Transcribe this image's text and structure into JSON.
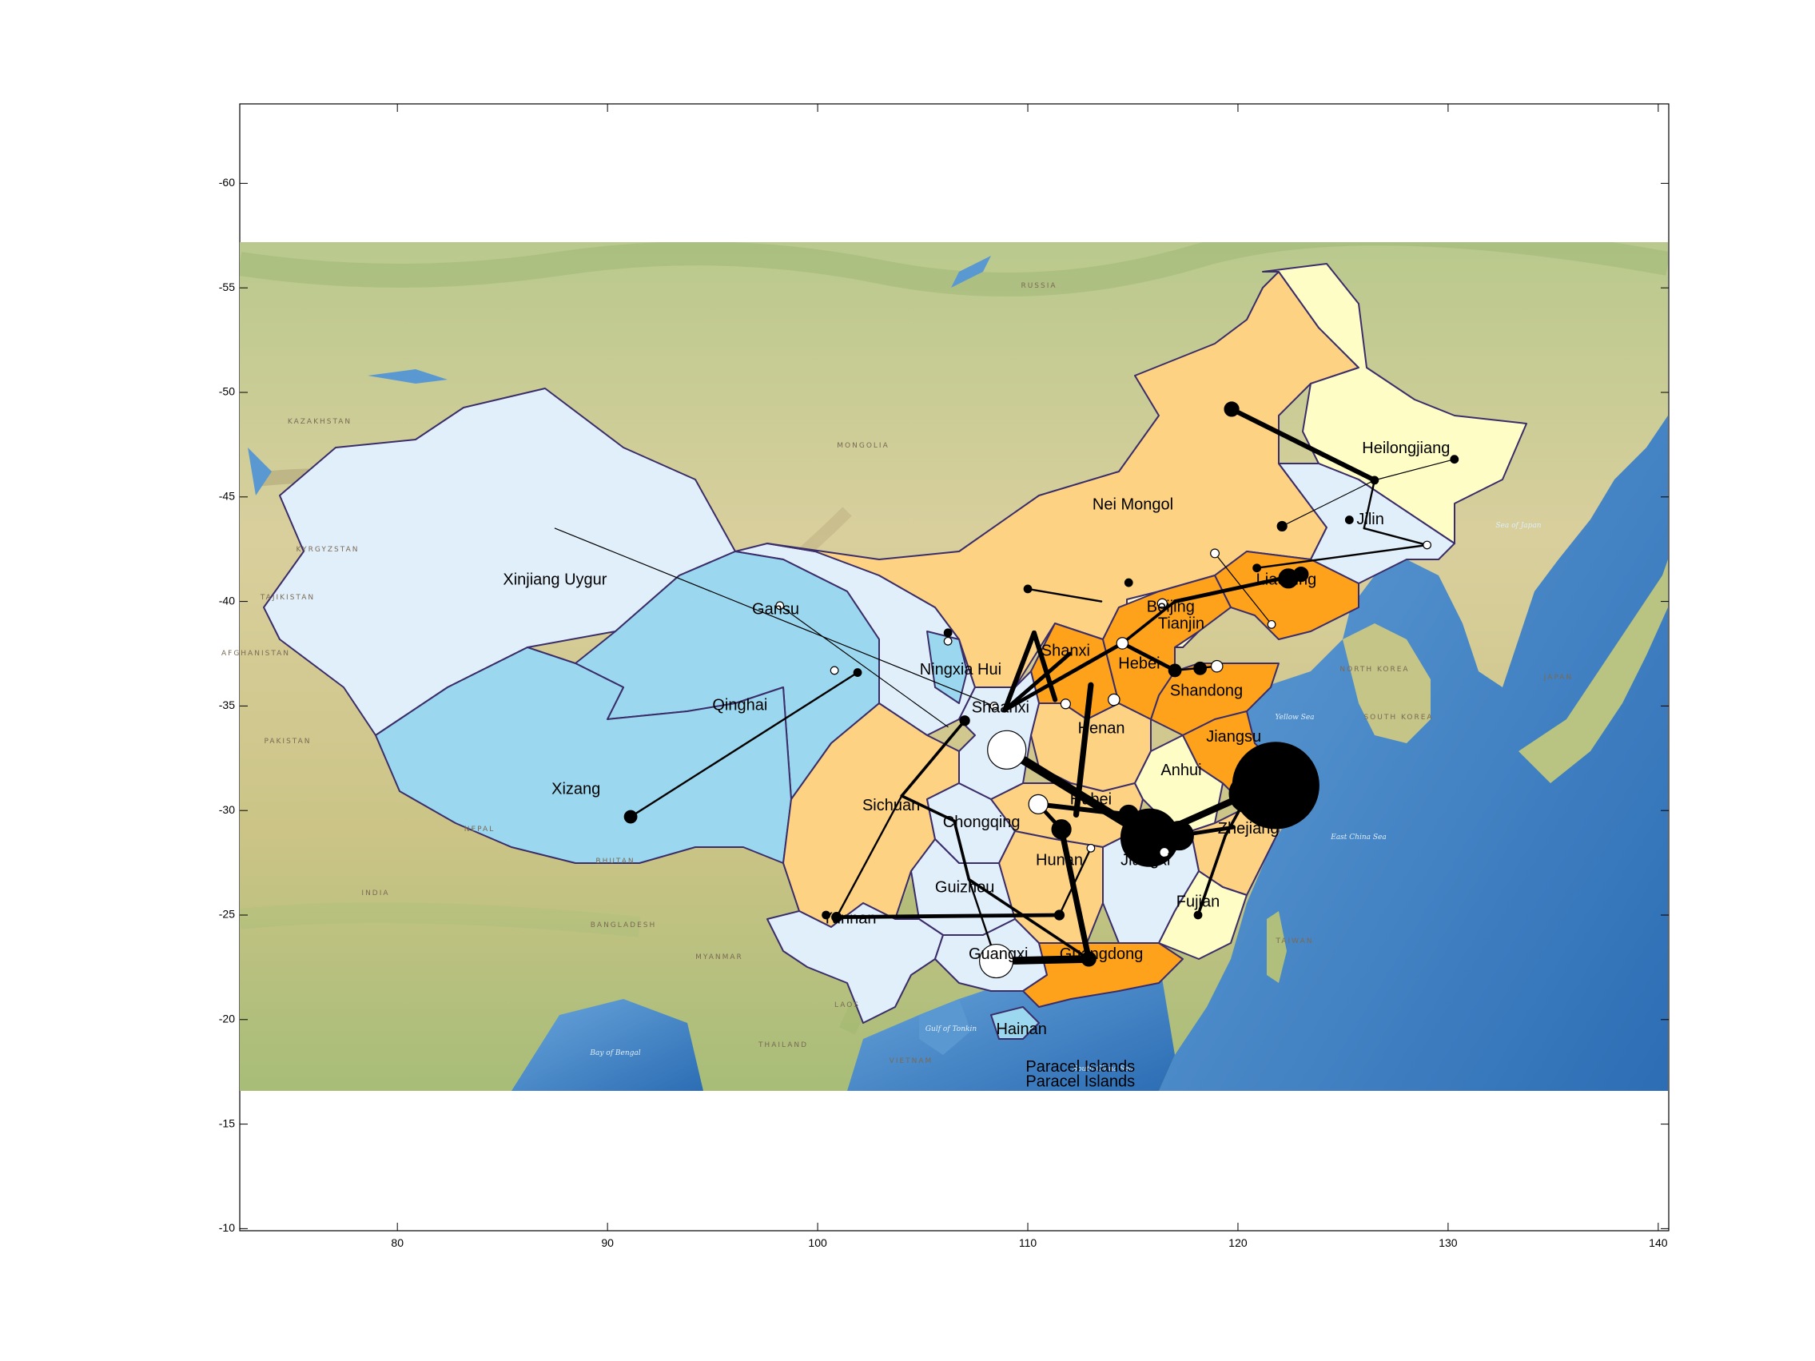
{
  "figure": {
    "x_axis": {
      "ticks": [
        80,
        90,
        100,
        110,
        120,
        130,
        140
      ],
      "range": [
        72.5,
        140.5
      ]
    },
    "y_axis": {
      "ticks": [
        -60,
        -55,
        -50,
        -45,
        -40,
        -35,
        -30,
        -25,
        -20,
        -15,
        -10
      ],
      "range": [
        -63.8,
        -9.9
      ]
    }
  },
  "colors": {
    "background_land": "#d8cf9c",
    "sea": "#4c8fd0",
    "province_lightest": "#e1effb",
    "province_light_blue": "#9bd8ef",
    "province_cream": "#fffdc6",
    "province_light_orange": "#fdd283",
    "province_orange": "#fda21a",
    "border": "#3a2d6a",
    "network": "#000000"
  },
  "provinces": [
    {
      "name": "Xinjiang Uygur",
      "lon": 87.5,
      "lat": -41.0,
      "class": "lightest"
    },
    {
      "name": "Gansu",
      "lon": 98.0,
      "lat": -39.6,
      "class": "lightest"
    },
    {
      "name": "Qinghai",
      "lon": 96.3,
      "lat": -35.0,
      "class": "light_blue"
    },
    {
      "name": "Xizang",
      "lon": 88.5,
      "lat": -31.0,
      "class": "light_blue"
    },
    {
      "name": "Nei Mongol",
      "lon": 115.0,
      "lat": -44.6,
      "class": "light_orange"
    },
    {
      "name": "Heilongjiang",
      "lon": 128.0,
      "lat": -47.3,
      "class": "cream"
    },
    {
      "name": "Jilin",
      "lon": 126.3,
      "lat": -43.9,
      "class": "lightest"
    },
    {
      "name": "Liaoning",
      "lon": 122.3,
      "lat": -41.0,
      "class": "orange"
    },
    {
      "name": "Beijing",
      "lon": 116.8,
      "lat": -39.7,
      "class": "cream"
    },
    {
      "name": "Tianjin",
      "lon": 117.3,
      "lat": -38.9,
      "class": "cream"
    },
    {
      "name": "Ningxia Hui",
      "lon": 106.8,
      "lat": -36.7,
      "class": "light_blue"
    },
    {
      "name": "Shandong",
      "lon": 118.5,
      "lat": -35.7,
      "class": "orange"
    },
    {
      "name": "Henan",
      "lon": 113.5,
      "lat": -33.9,
      "class": "light_orange"
    },
    {
      "name": "Sichuan",
      "lon": 103.5,
      "lat": -30.2,
      "class": "light_orange"
    },
    {
      "name": "Chongqing",
      "lon": 107.8,
      "lat": -29.4,
      "class": "lightest"
    },
    {
      "name": "Hubei",
      "lon": 113.0,
      "lat": -30.5,
      "class": "light_orange"
    },
    {
      "name": "Anhui",
      "lon": 117.3,
      "lat": -31.9,
      "class": "cream"
    },
    {
      "name": "Jiangsu",
      "lon": 119.8,
      "lat": -33.5,
      "class": "orange"
    },
    {
      "name": "Zhejiang",
      "lon": 120.5,
      "lat": -29.1,
      "class": "light_orange"
    },
    {
      "name": "Hunan",
      "lon": 111.5,
      "lat": -27.6,
      "class": "light_orange"
    },
    {
      "name": "Jiangxi",
      "lon": 115.6,
      "lat": -27.6,
      "class": "lightest"
    },
    {
      "name": "Guizhou",
      "lon": 107.0,
      "lat": -26.3,
      "class": "lightest"
    },
    {
      "name": "Fujian",
      "lon": 118.1,
      "lat": -25.6,
      "class": "cream"
    },
    {
      "name": "Yunnan",
      "lon": 101.5,
      "lat": -24.8,
      "class": "lightest"
    },
    {
      "name": "Guangxi",
      "lon": 108.6,
      "lat": -23.1,
      "class": "lightest"
    },
    {
      "name": "Guangdong",
      "lon": 113.5,
      "lat": -23.1,
      "class": "orange"
    },
    {
      "name": "Hainan",
      "lon": 109.7,
      "lat": -19.5,
      "class": "light_blue"
    },
    {
      "name": "Shanxi",
      "lon": 111.8,
      "lat": -37.6,
      "class": "orange"
    },
    {
      "name": "Shaanxi",
      "lon": 108.7,
      "lat": -34.9,
      "class": "lightest"
    },
    {
      "name": "Hebei",
      "lon": 115.3,
      "lat": -37.0,
      "class": "orange"
    }
  ],
  "islands": [
    {
      "name": "Paracel Islands",
      "lon": 112.5,
      "lat": -17.7
    },
    {
      "name": "Paracel Islands",
      "lon": 112.5,
      "lat": -17.0
    }
  ],
  "map_text_labels": [
    "Shanxi",
    "Shaanxi",
    "Hebei"
  ],
  "background_labels": [
    "MONGOLIA",
    "KAZAKHSTAN",
    "KYRGYZSTAN",
    "TAJIKISTAN",
    "AFGHANISTAN",
    "PAKISTAN",
    "INDIA",
    "NEPAL",
    "BHUTAN",
    "BANGLADESH",
    "MYANMAR",
    "LAOS",
    "THAILAND",
    "VIETNAM",
    "NORTH KOREA",
    "SOUTH KOREA",
    "JAPAN",
    "RUSSIA",
    "TAIWAN"
  ],
  "sea_labels": [
    "Yellow Sea",
    "East China Sea",
    "South China Sea",
    "Sea of Japan",
    "Bay of Bengal",
    "Gulf of Tonkin"
  ],
  "nodes": [
    {
      "lon": 121.8,
      "lat": -31.2,
      "size": 9,
      "fill": "black"
    },
    {
      "lon": 120.5,
      "lat": -30.8,
      "size": 4,
      "fill": "black"
    },
    {
      "lon": 115.8,
      "lat": -28.7,
      "size": 6,
      "fill": "black"
    },
    {
      "lon": 117.2,
      "lat": -28.8,
      "size": 3,
      "fill": "black"
    },
    {
      "lon": 109.0,
      "lat": -32.9,
      "size": 4,
      "fill": "white"
    },
    {
      "lon": 108.5,
      "lat": -22.8,
      "size": 3.5,
      "fill": "white"
    },
    {
      "lon": 110.5,
      "lat": -30.3,
      "size": 2,
      "fill": "white"
    },
    {
      "lon": 111.6,
      "lat": -29.1,
      "size": 2,
      "fill": "black"
    },
    {
      "lon": 114.8,
      "lat": -29.8,
      "size": 2,
      "fill": "black"
    },
    {
      "lon": 122.4,
      "lat": -41.1,
      "size": 2,
      "fill": "black"
    },
    {
      "lon": 123.0,
      "lat": -41.3,
      "size": 1.5,
      "fill": "black"
    },
    {
      "lon": 119.7,
      "lat": -49.2,
      "size": 1.5,
      "fill": "black"
    },
    {
      "lon": 91.1,
      "lat": -29.7,
      "size": 1.3,
      "fill": "black"
    },
    {
      "lon": 117.0,
      "lat": -36.7,
      "size": 1.3,
      "fill": "black"
    },
    {
      "lon": 118.2,
      "lat": -36.8,
      "size": 1.3,
      "fill": "black"
    },
    {
      "lon": 107.0,
      "lat": -34.3,
      "size": 1,
      "fill": "black"
    },
    {
      "lon": 114.1,
      "lat": -35.3,
      "size": 1.2,
      "fill": "white"
    },
    {
      "lon": 119.0,
      "lat": -36.9,
      "size": 1.2,
      "fill": "white"
    },
    {
      "lon": 114.5,
      "lat": -38.0,
      "size": 1.2,
      "fill": "white"
    },
    {
      "lon": 116.4,
      "lat": -39.9,
      "size": 1,
      "fill": "white"
    },
    {
      "lon": 111.8,
      "lat": -35.1,
      "size": 1,
      "fill": "white"
    },
    {
      "lon": 112.9,
      "lat": -22.9,
      "size": 1.5,
      "fill": "black"
    },
    {
      "lon": 111.5,
      "lat": -25.0,
      "size": 1,
      "fill": "black"
    },
    {
      "lon": 100.9,
      "lat": -24.9,
      "size": 1,
      "fill": "black"
    },
    {
      "lon": 100.4,
      "lat": -25.0,
      "size": 0.8,
      "fill": "black"
    },
    {
      "lon": 110.0,
      "lat": -40.6,
      "size": 0.8,
      "fill": "black"
    },
    {
      "lon": 106.2,
      "lat": -38.5,
      "size": 0.8,
      "fill": "black"
    },
    {
      "lon": 101.9,
      "lat": -36.6,
      "size": 0.8,
      "fill": "black"
    },
    {
      "lon": 100.8,
      "lat": -36.7,
      "size": 0.8,
      "fill": "white"
    },
    {
      "lon": 98.2,
      "lat": -39.8,
      "size": 0.8,
      "fill": "white"
    },
    {
      "lon": 126.5,
      "lat": -45.8,
      "size": 0.8,
      "fill": "black"
    },
    {
      "lon": 130.3,
      "lat": -46.8,
      "size": 0.8,
      "fill": "black"
    },
    {
      "lon": 129.0,
      "lat": -42.7,
      "size": 0.8,
      "fill": "white"
    },
    {
      "lon": 122.1,
      "lat": -43.6,
      "size": 1,
      "fill": "black"
    },
    {
      "lon": 125.3,
      "lat": -43.9,
      "size": 0.8,
      "fill": "black"
    },
    {
      "lon": 120.9,
      "lat": -41.6,
      "size": 0.8,
      "fill": "black"
    },
    {
      "lon": 118.9,
      "lat": -42.3,
      "size": 0.9,
      "fill": "white"
    },
    {
      "lon": 106.2,
      "lat": -38.1,
      "size": 0.8,
      "fill": "white"
    },
    {
      "lon": 114.8,
      "lat": -40.9,
      "size": 0.8,
      "fill": "black"
    },
    {
      "lon": 113.0,
      "lat": -28.2,
      "size": 0.8,
      "fill": "white"
    },
    {
      "lon": 116.5,
      "lat": -28.0,
      "size": 1,
      "fill": "white"
    },
    {
      "lon": 121.6,
      "lat": -38.9,
      "size": 0.8,
      "fill": "white"
    },
    {
      "lon": 118.1,
      "lat": -25.0,
      "size": 0.8,
      "fill": "black"
    },
    {
      "lon": 108.4,
      "lat": -35.0,
      "size": 0.8,
      "fill": "white"
    }
  ],
  "edges": [
    {
      "from": [
        121.8,
        -31.2
      ],
      "to": [
        120.5,
        -30.8
      ],
      "width": 5
    },
    {
      "from": [
        109.0,
        -32.9
      ],
      "to": [
        115.8,
        -28.7
      ],
      "width": 9
    },
    {
      "from": [
        115.8,
        -28.7
      ],
      "to": [
        120.5,
        -30.8
      ],
      "width": 7
    },
    {
      "from": [
        117.2,
        -28.8
      ],
      "to": [
        119.8,
        -29.2
      ],
      "width": 4
    },
    {
      "from": [
        108.5,
        -22.8
      ],
      "to": [
        112.9,
        -22.9
      ],
      "width": 8
    },
    {
      "from": [
        112.9,
        -22.9
      ],
      "to": [
        111.6,
        -29.1
      ],
      "width": 6
    },
    {
      "from": [
        111.6,
        -29.1
      ],
      "to": [
        110.5,
        -30.3
      ],
      "width": 4
    },
    {
      "from": [
        110.5,
        -30.3
      ],
      "to": [
        114.8,
        -29.8
      ],
      "width": 5
    },
    {
      "from": [
        114.8,
        -29.8
      ],
      "to": [
        115.8,
        -28.7
      ],
      "width": 5
    },
    {
      "from": [
        119.7,
        -49.2
      ],
      "to": [
        126.5,
        -45.8
      ],
      "width": 5
    },
    {
      "from": [
        126.5,
        -45.8
      ],
      "to": [
        126.0,
        -43.5
      ],
      "width": 2
    },
    {
      "from": [
        126.0,
        -43.5
      ],
      "to": [
        129.0,
        -42.7
      ],
      "width": 2
    },
    {
      "from": [
        126.5,
        -45.8
      ],
      "to": [
        130.3,
        -46.8
      ],
      "width": 1
    },
    {
      "from": [
        123.0,
        -41.3
      ],
      "to": [
        117.0,
        -40.0
      ],
      "width": 4
    },
    {
      "from": [
        117.0,
        -40.0
      ],
      "to": [
        114.5,
        -38.0
      ],
      "width": 3
    },
    {
      "from": [
        114.5,
        -38.0
      ],
      "to": [
        108.9,
        -34.8
      ],
      "width": 4
    },
    {
      "from": [
        114.5,
        -38.0
      ],
      "to": [
        117.0,
        -36.7
      ],
      "width": 4
    },
    {
      "from": [
        117.0,
        -36.7
      ],
      "to": [
        119.0,
        -36.9
      ],
      "width": 2
    },
    {
      "from": [
        108.9,
        -34.8
      ],
      "to": [
        110.3,
        -38.5
      ],
      "width": 5
    },
    {
      "from": [
        110.3,
        -38.5
      ],
      "to": [
        111.3,
        -35.3
      ],
      "width": 5
    },
    {
      "from": [
        108.9,
        -34.8
      ],
      "to": [
        112.0,
        -37.5
      ],
      "width": 4
    },
    {
      "from": [
        107.0,
        -34.3
      ],
      "to": [
        104.0,
        -30.7
      ],
      "width": 3
    },
    {
      "from": [
        104.0,
        -30.7
      ],
      "to": [
        100.9,
        -24.9
      ],
      "width": 2
    },
    {
      "from": [
        100.9,
        -24.9
      ],
      "to": [
        111.5,
        -25.0
      ],
      "width": 4
    },
    {
      "from": [
        104.0,
        -30.7
      ],
      "to": [
        106.5,
        -29.5
      ],
      "width": 3
    },
    {
      "from": [
        106.5,
        -29.5
      ],
      "to": [
        107.2,
        -26.7
      ],
      "width": 3
    },
    {
      "from": [
        107.2,
        -26.7
      ],
      "to": [
        112.9,
        -22.9
      ],
      "width": 3
    },
    {
      "from": [
        91.1,
        -29.7
      ],
      "to": [
        101.9,
        -36.6
      ],
      "width": 2
    },
    {
      "from": [
        87.5,
        -43.5
      ],
      "to": [
        108.4,
        -35.0
      ],
      "width": 1
    },
    {
      "from": [
        98.2,
        -39.8
      ],
      "to": [
        106.2,
        -34.0
      ],
      "width": 1
    },
    {
      "from": [
        110.0,
        -40.6
      ],
      "to": [
        113.5,
        -40.0
      ],
      "width": 2
    },
    {
      "from": [
        122.1,
        -43.6
      ],
      "to": [
        126.5,
        -45.8
      ],
      "width": 1
    },
    {
      "from": [
        120.9,
        -41.6
      ],
      "to": [
        129.0,
        -42.7
      ],
      "width": 2
    },
    {
      "from": [
        118.9,
        -42.3
      ],
      "to": [
        121.6,
        -38.9
      ],
      "width": 1
    },
    {
      "from": [
        113.0,
        -36.0
      ],
      "to": [
        112.3,
        -29.8
      ],
      "width": 6
    },
    {
      "from": [
        118.1,
        -25.0
      ],
      "to": [
        119.4,
        -28.8
      ],
      "width": 3
    },
    {
      "from": [
        119.4,
        -28.8
      ],
      "to": [
        120.5,
        -30.8
      ],
      "width": 3
    },
    {
      "from": [
        108.5,
        -22.8
      ],
      "to": [
        107.2,
        -26.7
      ],
      "width": 2
    },
    {
      "from": [
        111.5,
        -25.0
      ],
      "to": [
        113.0,
        -28.2
      ],
      "width": 2
    }
  ]
}
